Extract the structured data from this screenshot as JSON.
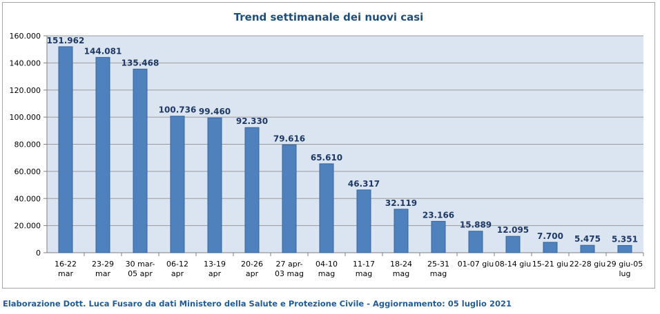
{
  "chart_data": {
    "type": "bar",
    "title": "Trend settimanale dei nuovi casi",
    "xlabel": "",
    "ylabel": "",
    "ylim": [
      0,
      160000
    ],
    "yticks": [
      "0",
      "20.000",
      "40.000",
      "60.000",
      "80.000",
      "100.000",
      "120.000",
      "140.000",
      "160.000"
    ],
    "grid": true,
    "legend": "none",
    "bar_color": "#4f81bd",
    "plot_background": "#dbe5f1",
    "categories": [
      [
        "16-22",
        "mar"
      ],
      [
        "23-29",
        "mar"
      ],
      [
        "30 mar-",
        "05 apr"
      ],
      [
        "06-12",
        "apr"
      ],
      [
        "13-19",
        "apr"
      ],
      [
        "20-26",
        "apr"
      ],
      [
        "27 apr-",
        "03 mag"
      ],
      [
        "04-10",
        "mag"
      ],
      [
        "11-17",
        "mag"
      ],
      [
        "18-24",
        "mag"
      ],
      [
        "25-31",
        "mag"
      ],
      [
        "01-07 giu"
      ],
      [
        "08-14 giu"
      ],
      [
        "15-21 giu"
      ],
      [
        "22-28 giu"
      ],
      [
        "29 giu-05",
        "lug"
      ]
    ],
    "values": [
      151962,
      144081,
      135468,
      100736,
      99460,
      92330,
      79616,
      65610,
      46317,
      32119,
      23166,
      15889,
      12095,
      7700,
      5475,
      5351
    ],
    "data_labels": [
      "151.962",
      "144.081",
      "135.468",
      "100.736",
      "99.460",
      "92.330",
      "79.616",
      "65.610",
      "46.317",
      "32.119",
      "23.166",
      "15.889",
      "12.095",
      "7.700",
      "5.475",
      "5.351"
    ]
  },
  "footer": "Elaborazione Dott. Luca Fusaro da dati Ministero della Salute e Protezione Civile - Aggiornamento: 05 luglio 2021"
}
